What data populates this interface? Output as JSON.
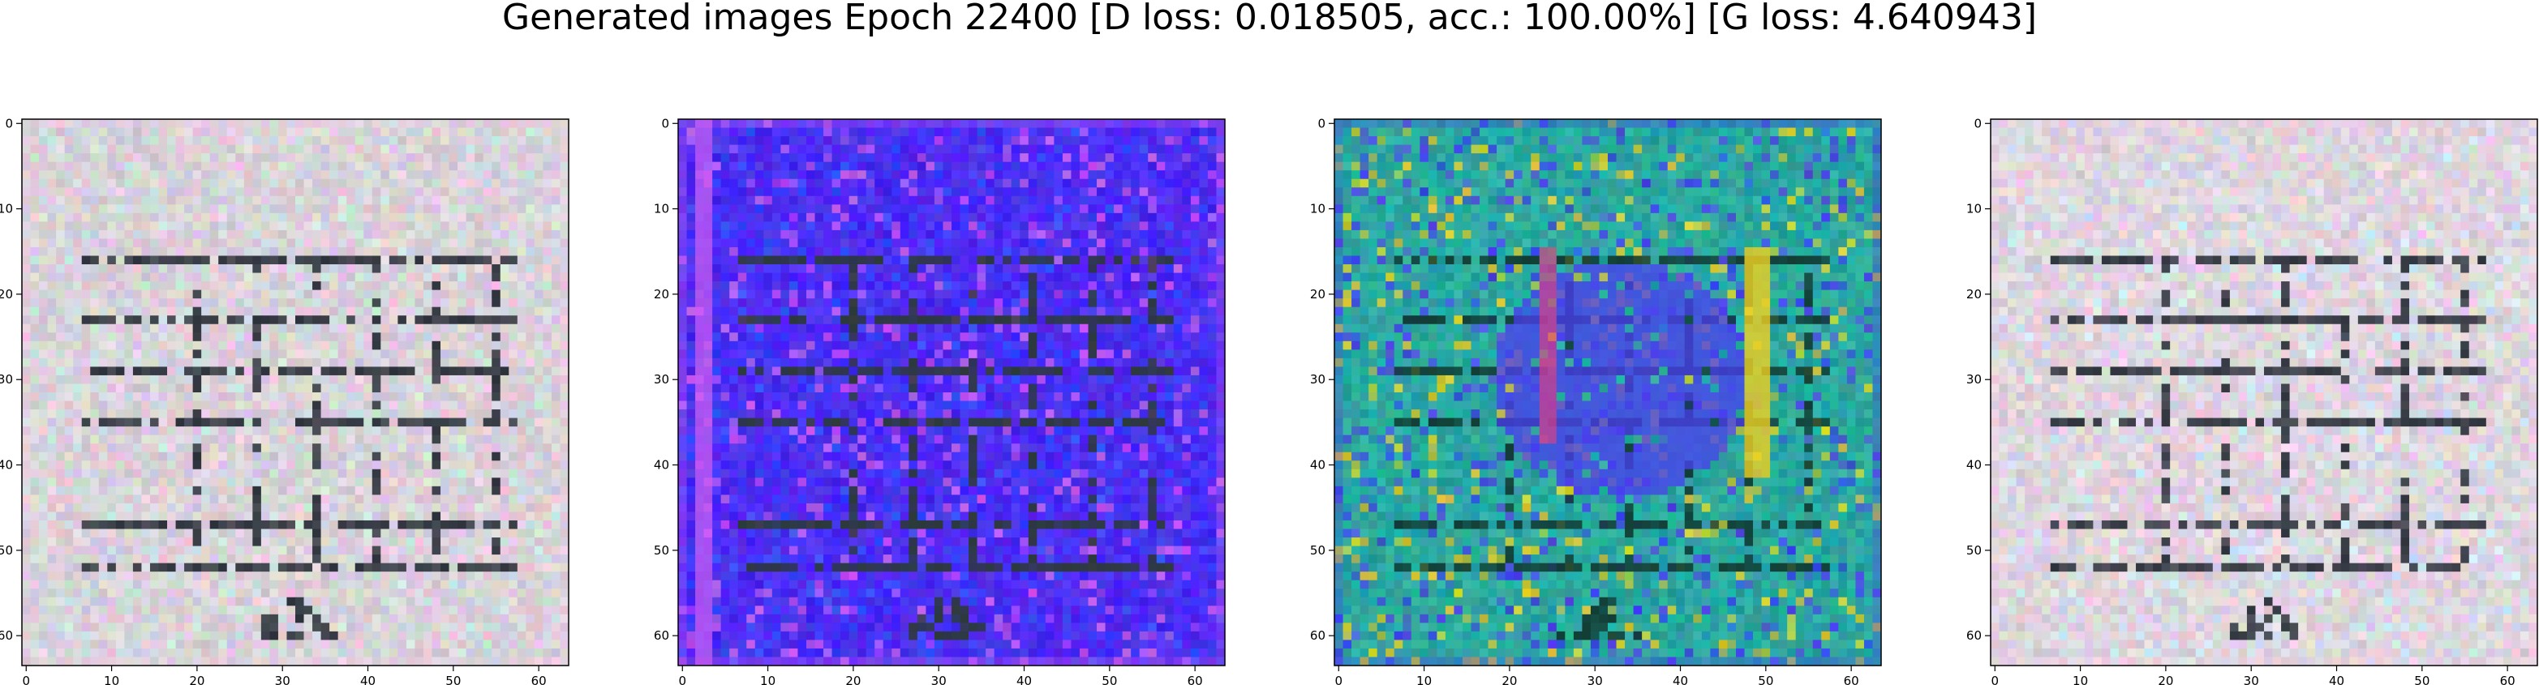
{
  "figure": {
    "title": "Generated images Epoch 22400 [D loss: 0.018505, acc.: 100.00%] [G loss: 4.640943]"
  },
  "chart_data": [
    {
      "type": "heatmap",
      "description": "generated image sample (near-grayscale noisy tile with dark grid lines)",
      "palette": {
        "base": "#d8d2d8",
        "line": "#222831",
        "accent1": "#f0c8e8",
        "accent2": "#c8e8d8"
      },
      "xlim": [
        0,
        63
      ],
      "ylim": [
        63,
        0
      ],
      "xticks": [
        0,
        10,
        20,
        30,
        40,
        50,
        60
      ],
      "yticks": [
        0,
        10,
        20,
        30,
        40,
        50,
        60
      ],
      "grid": false
    },
    {
      "type": "heatmap",
      "description": "generated image sample (blue/violet tile with dark horizontal bands)",
      "palette": {
        "base": "#4b2df2",
        "line": "#2a3a30",
        "accent1": "#d060f0",
        "accent2": "#3050ff"
      },
      "xlim": [
        0,
        63
      ],
      "ylim": [
        63,
        0
      ],
      "xticks": [
        0,
        10,
        20,
        30,
        40,
        50,
        60
      ],
      "yticks": [
        0,
        10,
        20,
        30,
        40,
        50,
        60
      ],
      "grid": false
    },
    {
      "type": "heatmap",
      "description": "generated image sample (teal tile with blue blob and magenta/yellow stripes)",
      "palette": {
        "base": "#2aa8a0",
        "line": "#103830",
        "accent1": "#4a3cf0",
        "accent2": "#f0d020"
      },
      "xlim": [
        0,
        63
      ],
      "ylim": [
        63,
        0
      ],
      "xticks": [
        0,
        10,
        20,
        30,
        40,
        50,
        60
      ],
      "yticks": [
        0,
        10,
        20,
        30,
        40,
        50,
        60
      ],
      "grid": false
    },
    {
      "type": "heatmap",
      "description": "generated image sample (near-grayscale noisy tile with dark grid lines)",
      "palette": {
        "base": "#dcd6dc",
        "line": "#242a33",
        "accent1": "#f4cce8",
        "accent2": "#cce8f4"
      },
      "xlim": [
        0,
        63
      ],
      "ylim": [
        63,
        0
      ],
      "xticks": [
        0,
        10,
        20,
        30,
        40,
        50,
        60
      ],
      "yticks": [
        0,
        10,
        20,
        30,
        40,
        50,
        60
      ],
      "grid": false
    }
  ]
}
